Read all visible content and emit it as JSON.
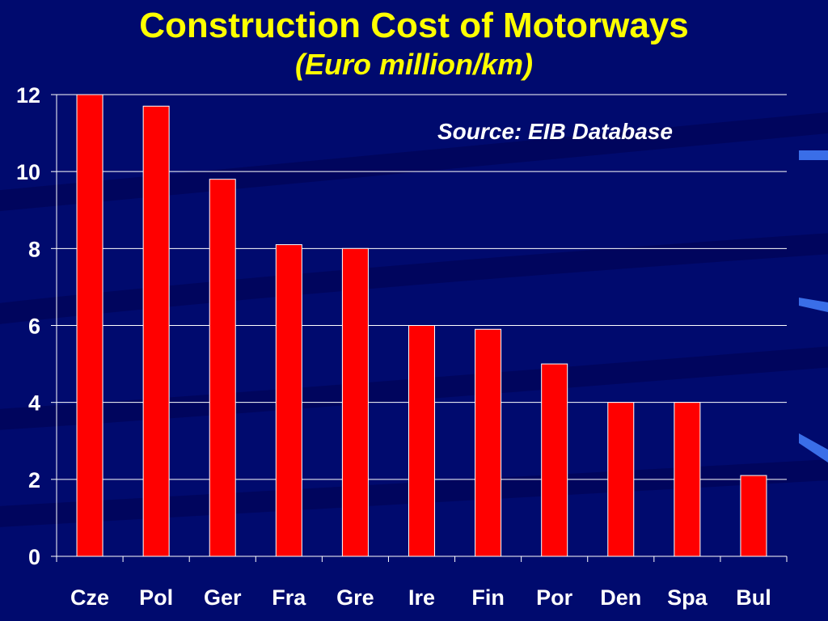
{
  "slide": {
    "title": "Construction Cost of Motorways",
    "subtitle": "(Euro million/km)",
    "source": "Source: EIB Database"
  },
  "colors": {
    "background": "#000a6e",
    "bar": "#ff0000",
    "bar_border": "#ffffff",
    "title": "#ffff00",
    "grid": "#ffffff",
    "text": "#ffffff"
  },
  "chart_data": {
    "type": "bar",
    "title": "Construction Cost of Motorways",
    "subtitle": "(Euro million/km)",
    "categories": [
      "Cze",
      "Pol",
      "Ger",
      "Fra",
      "Gre",
      "Ire",
      "Fin",
      "Por",
      "Den",
      "Spa",
      "Bul"
    ],
    "values": [
      12,
      11.7,
      9.8,
      8.1,
      8,
      6,
      5.9,
      5,
      4,
      4,
      2.1
    ],
    "yticks": [
      0,
      2,
      4,
      6,
      8,
      10,
      12
    ],
    "ylim": [
      0,
      12
    ],
    "xlabel": "",
    "ylabel": "",
    "grid": true,
    "legend": "none",
    "annotation": "Source: EIB Database"
  }
}
